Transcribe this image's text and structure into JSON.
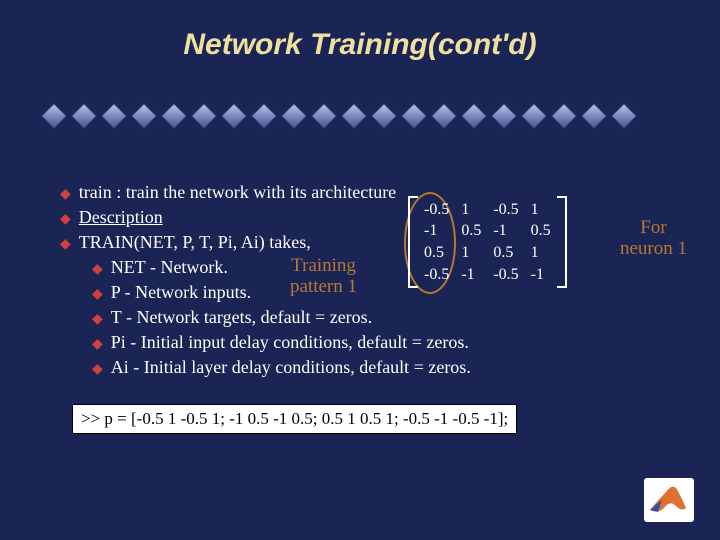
{
  "title": "Network Training(cont'd)",
  "diamond_count": 20,
  "bullets": [
    {
      "level": 1,
      "text": "train : train the network with its architecture",
      "underline": false
    },
    {
      "level": 1,
      "text": "Description",
      "underline": true
    },
    {
      "level": 1,
      "text": "TRAIN(NET, P, T, Pi, Ai) takes,",
      "underline": false
    },
    {
      "level": 2,
      "text": "NET - Network.",
      "underline": false
    },
    {
      "level": 2,
      "text": "P   - Network inputs.",
      "underline": false
    },
    {
      "level": 2,
      "text": "T   - Network targets, default = zeros.",
      "underline": false
    },
    {
      "level": 2,
      "text": "Pi  - Initial input delay conditions, default = zeros.",
      "underline": false
    },
    {
      "level": 2,
      "text": "Ai  - Initial layer delay conditions, default = zeros.",
      "underline": false
    }
  ],
  "training_label_line1": "Training",
  "training_label_line2": "pattern 1",
  "for_neuron_line1": "For",
  "for_neuron_line2": "neuron 1",
  "matrix": {
    "columns": [
      [
        "-0.5",
        "-1",
        "0.5",
        "-0.5"
      ],
      [
        "1",
        "0.5",
        "1",
        "-1"
      ],
      [
        "-0.5",
        "-1",
        "0.5",
        "-0.5"
      ],
      [
        "1",
        "0.5",
        "1",
        "-1"
      ]
    ]
  },
  "command": ">> p = [-0.5 1 -0.5 1; -1 0.5 -1 0.5; 0.5 1 0.5 1; -0.5 -1 -0.5 -1];",
  "colors": {
    "background": "#1a2555",
    "title": "#f0e0a0",
    "accent": "#b87830",
    "bullet_arrow": "#d04040",
    "text": "#ffffff"
  }
}
